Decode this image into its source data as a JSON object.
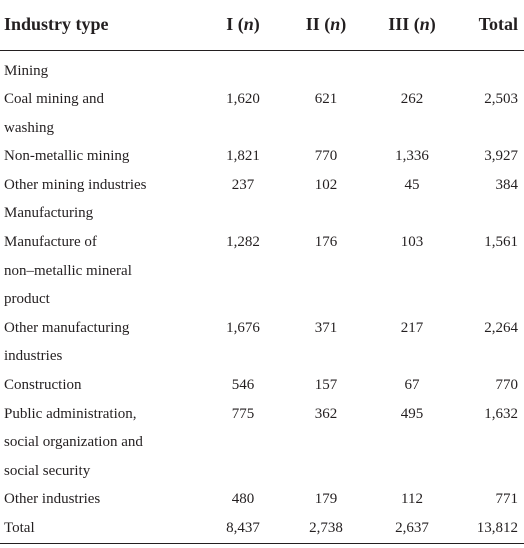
{
  "header": {
    "industry_type": "Industry type",
    "col1": "I (",
    "col2": "II (",
    "col3": "III (",
    "n": "n",
    "close": ")",
    "total": "Total"
  },
  "rows": [
    {
      "label": "Mining",
      "i": "",
      "ii": "",
      "iii": "",
      "total": ""
    },
    {
      "label": "Coal mining and\nwashing",
      "i": "1,620",
      "ii": "621",
      "iii": "262",
      "total": "2,503"
    },
    {
      "label": "Non-metallic mining",
      "i": "1,821",
      "ii": "770",
      "iii": "1,336",
      "total": "3,927"
    },
    {
      "label": "Other mining industries",
      "i": "237",
      "ii": "102",
      "iii": "45",
      "total": "384"
    },
    {
      "label": "Manufacturing",
      "i": "",
      "ii": "",
      "iii": "",
      "total": ""
    },
    {
      "label": "Manufacture of\nnon–metallic mineral\nproduct",
      "i": "1,282",
      "ii": "176",
      "iii": "103",
      "total": "1,561"
    },
    {
      "label": "Other manufacturing\nindustries",
      "i": "1,676",
      "ii": "371",
      "iii": "217",
      "total": "2,264"
    },
    {
      "label": "Construction",
      "i": "546",
      "ii": "157",
      "iii": "67",
      "total": "770"
    },
    {
      "label": "Public administration,\nsocial organization and\nsocial security",
      "i": "775",
      "ii": "362",
      "iii": "495",
      "total": "1,632"
    },
    {
      "label": "Other industries",
      "i": "480",
      "ii": "179",
      "iii": "112",
      "total": "771"
    },
    {
      "label": "Total",
      "i": "8,437",
      "ii": "2,738",
      "iii": "2,637",
      "total": "13,812"
    }
  ]
}
